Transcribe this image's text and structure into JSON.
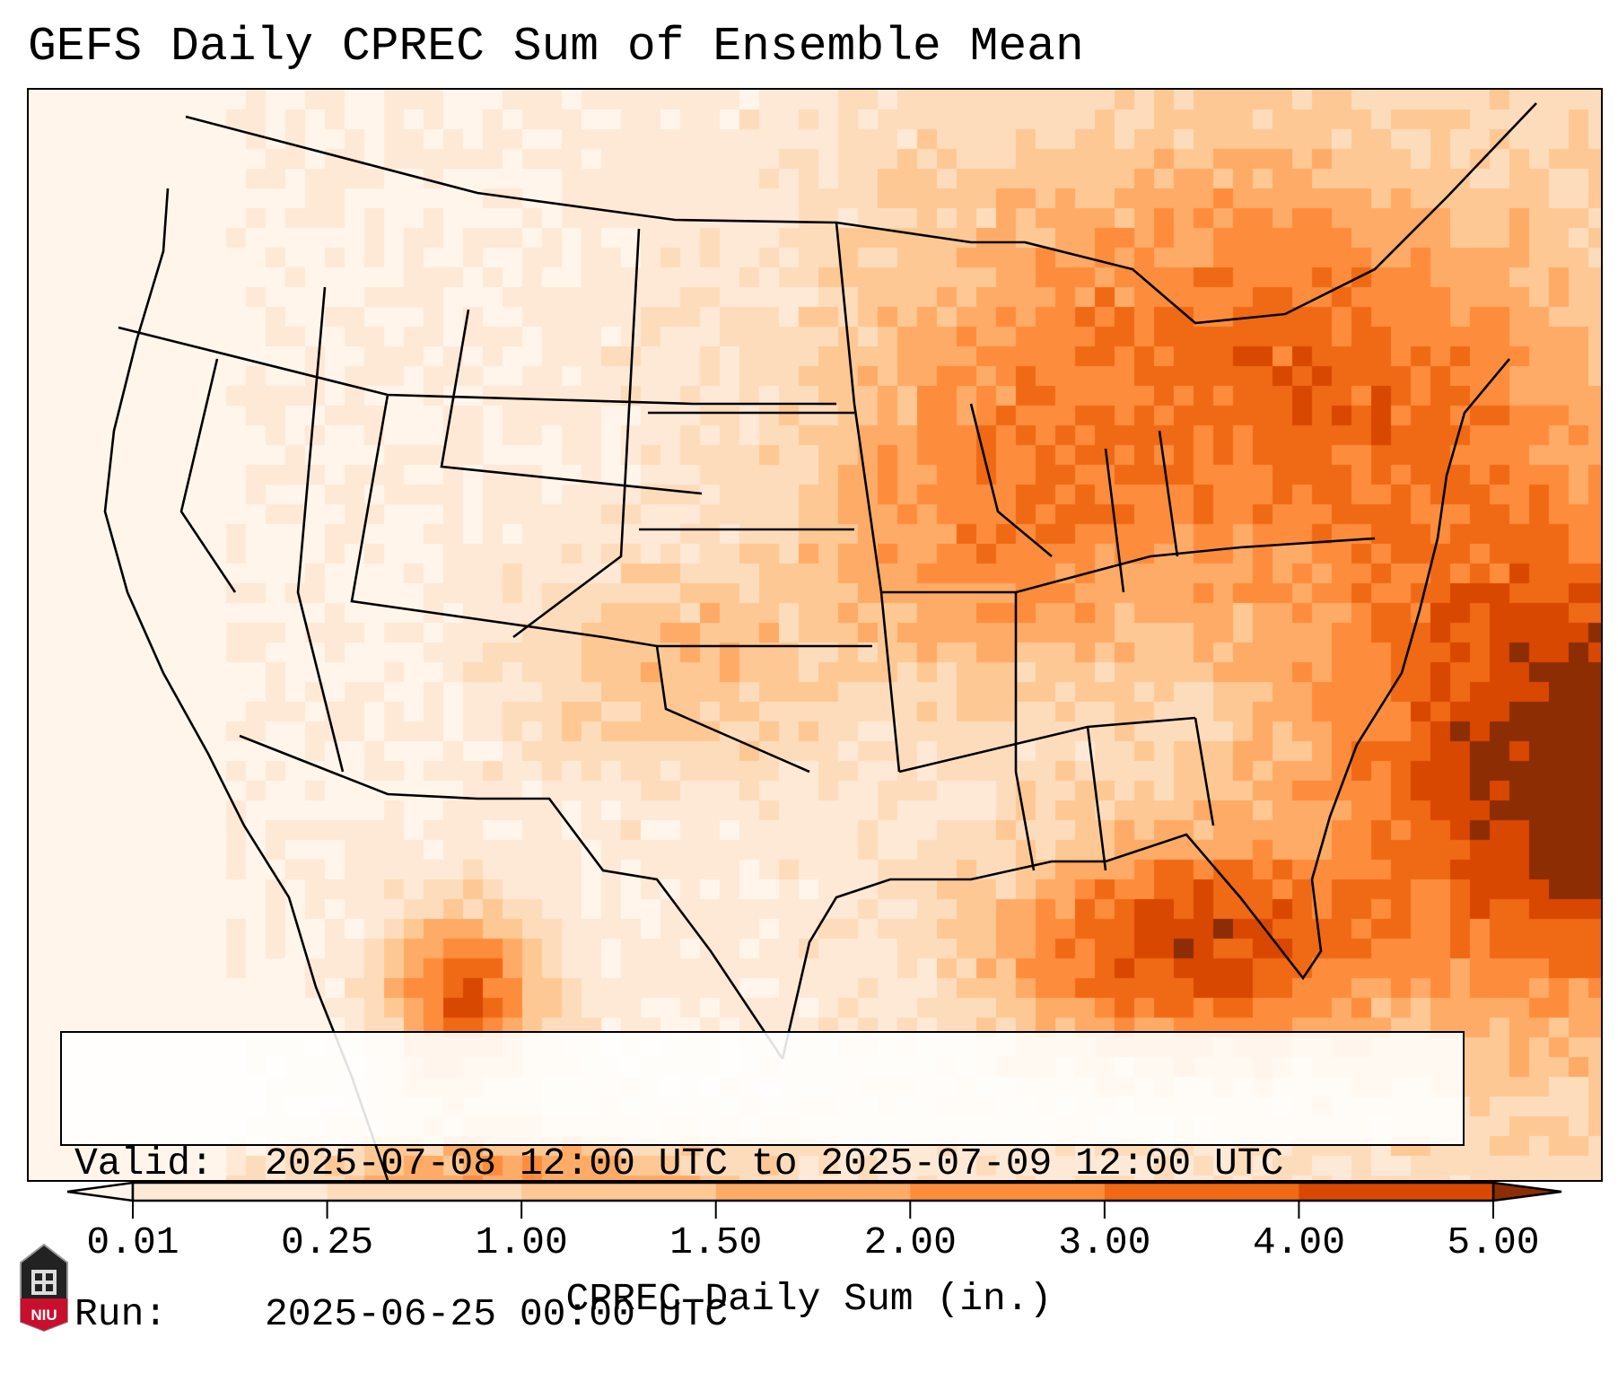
{
  "title": "GEFS Daily CPREC Sum of Ensemble Mean",
  "info": {
    "valid_label": "Valid:",
    "valid_value": "2025-07-08 12:00 UTC to 2025-07-09 12:00 UTC",
    "run_label": "Run:",
    "run_value": "2025-06-25 00:00 UTC"
  },
  "colorbar": {
    "label": "CPREC Daily Sum (in.)",
    "ticks": [
      "0.01",
      "0.25",
      "1.00",
      "1.50",
      "2.00",
      "3.00",
      "4.00",
      "5.00"
    ],
    "under_color": "#fff5eb",
    "colors": [
      "#fee9d6",
      "#fddcbc",
      "#fdc894",
      "#fdab66",
      "#fd8d3c",
      "#f06914",
      "#d94801"
    ],
    "over_color": "#8c2d04"
  },
  "logo": {
    "text": "NIU"
  }
}
